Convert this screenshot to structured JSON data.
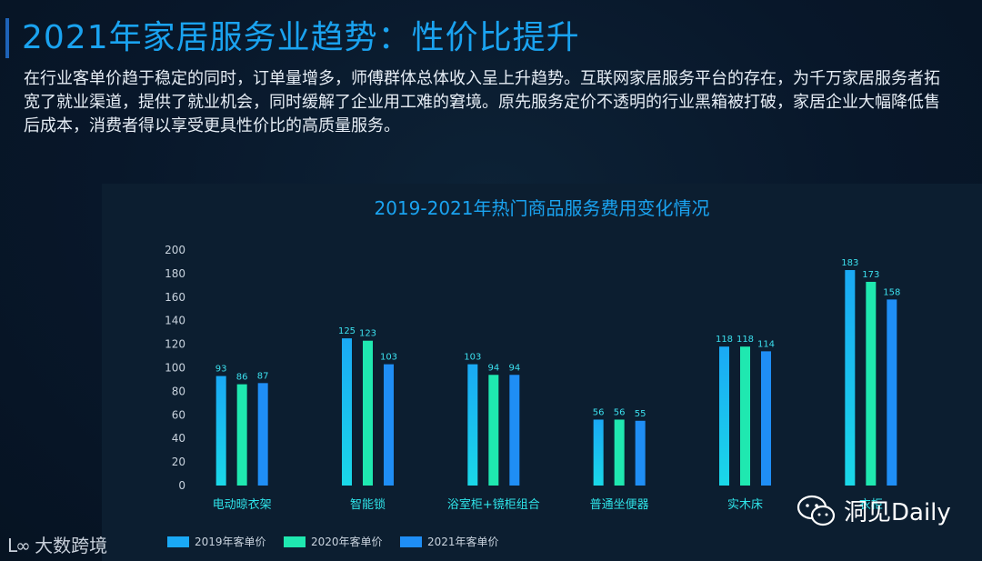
{
  "header": {
    "title": "2021年家居服务业趋势：性价比提升",
    "paragraph": "在行业客单价趋于稳定的同时，订单量增多，师傅群体总体收入呈上升趋势。互联网家居服务平台的存在，为千万家居服务者拓宽了就业渠道，提供了就业机会，同时缓解了企业用工难的窘境。原先服务定价不透明的行业黑箱被打破，家居企业大幅降低售后成本，消费者得以享受更具性价比的高质量服务。"
  },
  "footer": {
    "logo_mark": "L∞",
    "logo_text": "大数跨境",
    "wechat_text": "洞见Daily"
  },
  "colors": {
    "title": "#1aa3f0",
    "axis_text": "#c9d3de",
    "value_label": "#3ce0ee",
    "category_label": "#2fe3e8",
    "s2019_top": "#1aa9f5",
    "s2019_bottom": "#1ad8e8",
    "s2020": "#1fe8b0",
    "s2021": "#1f8ef5"
  },
  "chart_data": {
    "type": "bar",
    "title": "2019-2021年热门商品服务费用变化情况",
    "categories": [
      "电动晾衣架",
      "智能锁",
      "浴室柜+镜柜组合",
      "普通坐便器",
      "实木床",
      "衣柜"
    ],
    "series": [
      {
        "name": "2019年客单价",
        "values": [
          93,
          125,
          103,
          56,
          118,
          183
        ]
      },
      {
        "name": "2020年客单价",
        "values": [
          86,
          123,
          94,
          56,
          118,
          173
        ]
      },
      {
        "name": "2021年客单价",
        "values": [
          87,
          103,
          94,
          55,
          114,
          158
        ]
      }
    ],
    "ylim": [
      0,
      200
    ],
    "yticks": [
      0,
      20,
      40,
      60,
      80,
      100,
      120,
      140,
      160,
      180,
      200
    ],
    "legend_position": "bottom-left",
    "grid": false
  }
}
